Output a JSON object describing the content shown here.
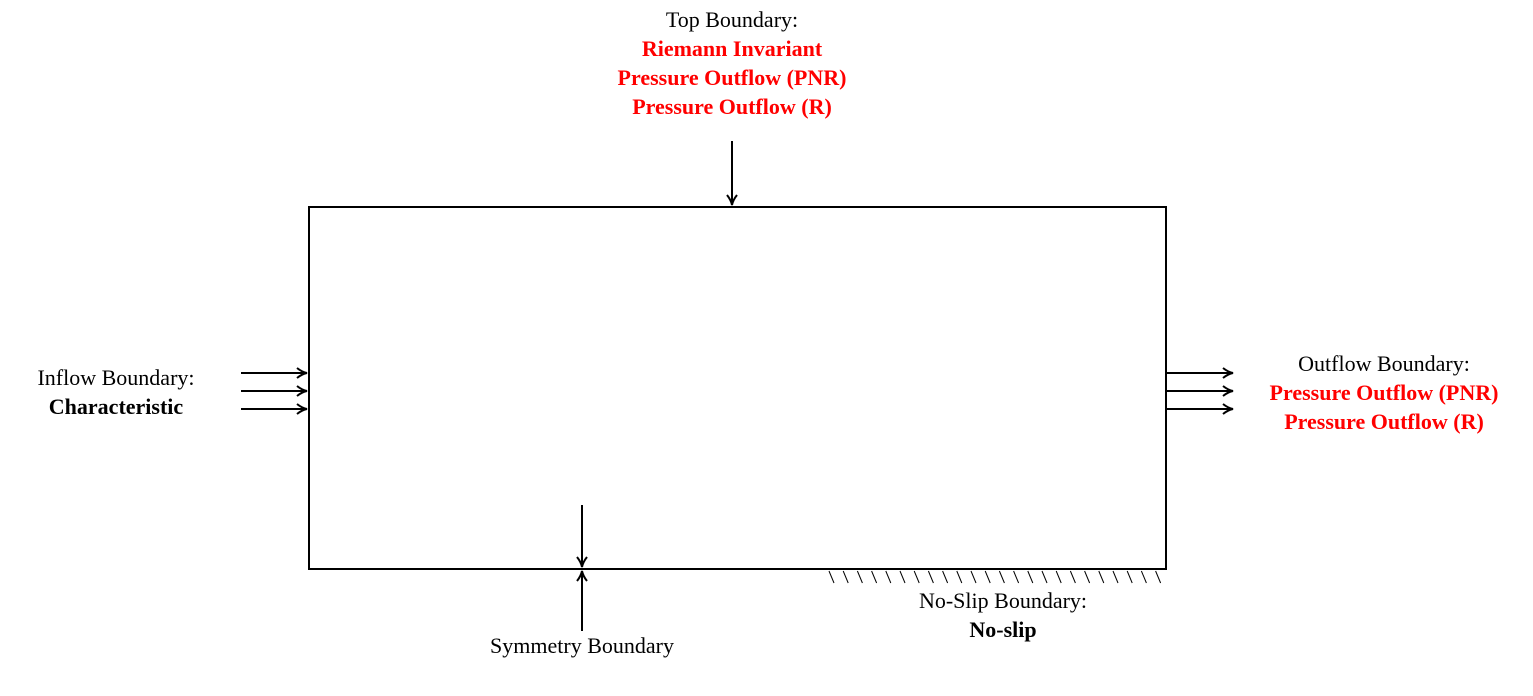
{
  "colors": {
    "line": "#000000",
    "highlight": "#ff0000"
  },
  "top_boundary": {
    "heading": "Top Boundary:",
    "conditions": [
      "Riemann Invariant",
      "Pressure Outflow (PNR)",
      "Pressure Outflow (R)"
    ]
  },
  "inflow_boundary": {
    "heading": "Inflow Boundary:",
    "condition": "Characteristic"
  },
  "outflow_boundary": {
    "heading": "Outflow Boundary:",
    "conditions": [
      "Pressure Outflow (PNR)",
      "Pressure Outflow (R)"
    ]
  },
  "symmetry_boundary": {
    "heading": "Symmetry Boundary"
  },
  "noslip_boundary": {
    "heading": "No-Slip Boundary:",
    "condition": "No-slip"
  }
}
